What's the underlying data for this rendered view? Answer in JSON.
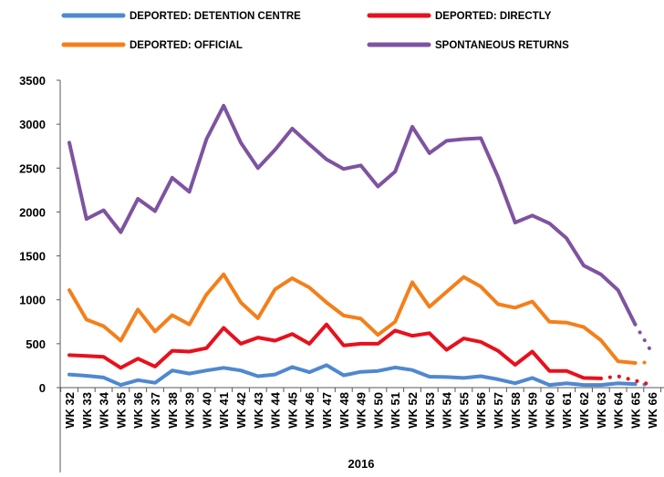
{
  "chart_data": {
    "type": "line",
    "title": "",
    "xlabel": "2016",
    "ylabel": "",
    "ylim": [
      0,
      3500
    ],
    "yticks": [
      0,
      500,
      1000,
      1500,
      2000,
      2500,
      3000,
      3500
    ],
    "grid": false,
    "legend_position": "top",
    "categories": [
      "WK 32",
      "WK 33",
      "WK 34",
      "WK 35",
      "WK 36",
      "WK 37",
      "WK 38",
      "WK 39",
      "WK 40",
      "WK 41",
      "WK 42",
      "WK 43",
      "WK 44",
      "WK 45",
      "WK 46",
      "WK 47",
      "WK 48",
      "WK 49",
      "WK 50",
      "WK 51",
      "WK 52",
      "WK 53",
      "WK 54",
      "WK 55",
      "WK 56",
      "WK 57",
      "WK 58",
      "WK 59",
      "WK 60",
      "WK 61",
      "WK 62",
      "WK 63",
      "WK 64",
      "WK 65",
      "WK 66"
    ],
    "series": [
      {
        "name": "DEPORTED: DETENTION CENTRE",
        "color": "#4f88d0",
        "values": [
          150,
          135,
          115,
          30,
          85,
          55,
          195,
          160,
          195,
          225,
          195,
          130,
          150,
          235,
          175,
          255,
          140,
          180,
          190,
          230,
          200,
          125,
          120,
          110,
          130,
          95,
          50,
          110,
          30,
          50,
          30,
          30,
          50,
          40,
          null
        ],
        "projected": [
          null,
          null,
          null,
          null,
          null,
          null,
          null,
          null,
          null,
          null,
          null,
          null,
          null,
          null,
          null,
          null,
          null,
          null,
          null,
          null,
          null,
          null,
          null,
          null,
          null,
          null,
          null,
          null,
          null,
          null,
          null,
          null,
          null,
          40,
          30
        ]
      },
      {
        "name": "DEPORTED: DIRECTLY",
        "color": "#e8101c",
        "values": [
          370,
          360,
          350,
          225,
          330,
          240,
          420,
          410,
          450,
          680,
          500,
          570,
          535,
          610,
          500,
          720,
          480,
          500,
          500,
          650,
          590,
          620,
          430,
          560,
          520,
          420,
          260,
          410,
          190,
          190,
          110,
          105,
          null,
          80,
          null
        ],
        "projected": [
          null,
          null,
          null,
          null,
          null,
          null,
          null,
          null,
          null,
          null,
          null,
          null,
          null,
          null,
          null,
          null,
          null,
          null,
          null,
          null,
          null,
          null,
          null,
          null,
          null,
          null,
          null,
          null,
          null,
          null,
          null,
          105,
          130,
          80,
          30
        ]
      },
      {
        "name": "DEPORTED: OFFICIAL",
        "color": "#f47f1a",
        "values": [
          1110,
          775,
          700,
          535,
          890,
          640,
          825,
          720,
          1060,
          1290,
          970,
          790,
          1120,
          1245,
          1140,
          970,
          820,
          785,
          600,
          750,
          1200,
          920,
          1090,
          1260,
          1150,
          950,
          910,
          980,
          750,
          740,
          690,
          540,
          300,
          280,
          null
        ],
        "projected": [
          null,
          null,
          null,
          null,
          null,
          null,
          null,
          null,
          null,
          null,
          null,
          null,
          null,
          null,
          null,
          null,
          null,
          null,
          null,
          null,
          null,
          null,
          null,
          null,
          null,
          null,
          null,
          null,
          null,
          null,
          null,
          null,
          null,
          280,
          290
        ]
      },
      {
        "name": "SPONTANEOUS RETURNS",
        "color": "#7e53a0",
        "values": [
          2790,
          1920,
          2020,
          1770,
          2150,
          2010,
          2390,
          2230,
          2830,
          3210,
          2790,
          2500,
          2710,
          2950,
          2770,
          2600,
          2490,
          2530,
          2290,
          2460,
          2970,
          2670,
          2810,
          2830,
          2840,
          2400,
          1880,
          1960,
          1870,
          1700,
          1390,
          1290,
          1110,
          720,
          null
        ],
        "projected": [
          null,
          null,
          null,
          null,
          null,
          null,
          null,
          null,
          null,
          null,
          null,
          null,
          null,
          null,
          null,
          null,
          null,
          null,
          null,
          null,
          null,
          null,
          null,
          null,
          null,
          null,
          null,
          null,
          null,
          null,
          null,
          null,
          null,
          720,
          390
        ]
      }
    ]
  }
}
